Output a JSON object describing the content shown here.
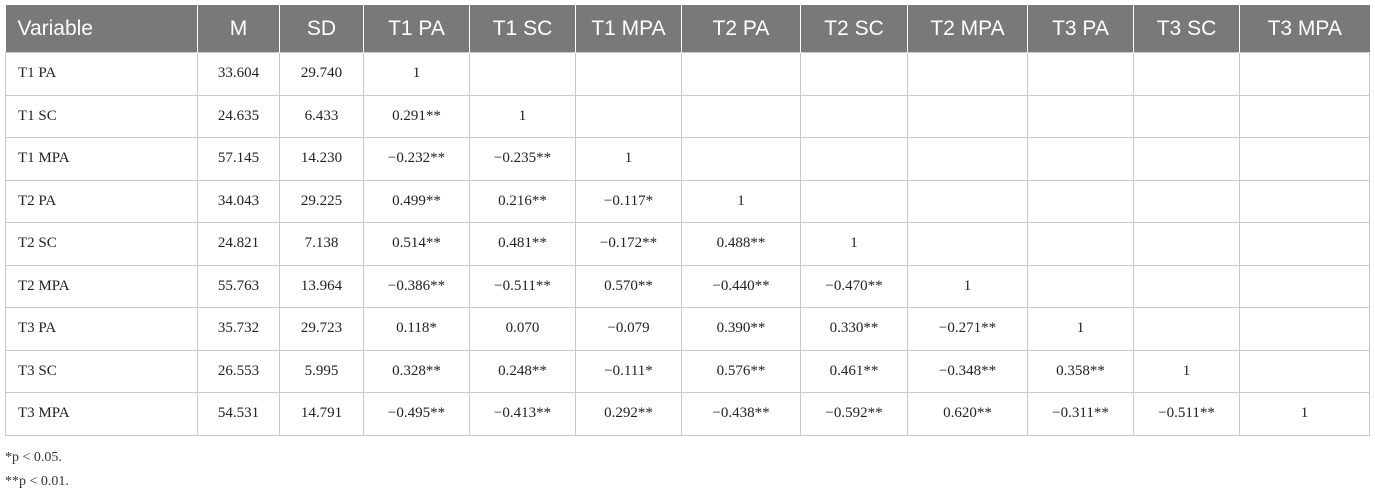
{
  "table": {
    "header": [
      "Variable",
      "M",
      "SD",
      "T1 PA",
      "T1 SC",
      "T1 MPA",
      "T2 PA",
      "T2 SC",
      "T2 MPA",
      "T3 PA",
      "T3 SC",
      "T3 MPA"
    ],
    "rows": [
      [
        "T1 PA",
        "33.604",
        "29.740",
        "1"
      ],
      [
        "T1 SC",
        "24.635",
        "6.433",
        "0.291**",
        "1"
      ],
      [
        "T1 MPA",
        "57.145",
        "14.230",
        "−0.232**",
        "−0.235**",
        "1"
      ],
      [
        "T2 PA",
        "34.043",
        "29.225",
        "0.499**",
        "0.216**",
        "−0.117*",
        "1"
      ],
      [
        "T2 SC",
        "24.821",
        "7.138",
        "0.514**",
        "0.481**",
        "−0.172**",
        "0.488**",
        "1"
      ],
      [
        "T2 MPA",
        "55.763",
        "13.964",
        "−0.386**",
        "−0.511**",
        "0.570**",
        "−0.440**",
        "−0.470**",
        "1"
      ],
      [
        "T3 PA",
        "35.732",
        "29.723",
        "0.118*",
        "0.070",
        "−0.079",
        "0.390**",
        "0.330**",
        "−0.271**",
        "1"
      ],
      [
        "T3 SC",
        "26.553",
        "5.995",
        "0.328**",
        "0.248**",
        "−0.111*",
        "0.576**",
        "0.461**",
        "−0.348**",
        "0.358**",
        "1"
      ],
      [
        "T3 MPA",
        "54.531",
        "14.791",
        "−0.495**",
        "−0.413**",
        "0.292**",
        "−0.438**",
        "−0.592**",
        "0.620**",
        "−0.311**",
        "−0.511**",
        "1"
      ]
    ],
    "footnotes": [
      "*p < 0.05.",
      "**p < 0.01."
    ]
  }
}
